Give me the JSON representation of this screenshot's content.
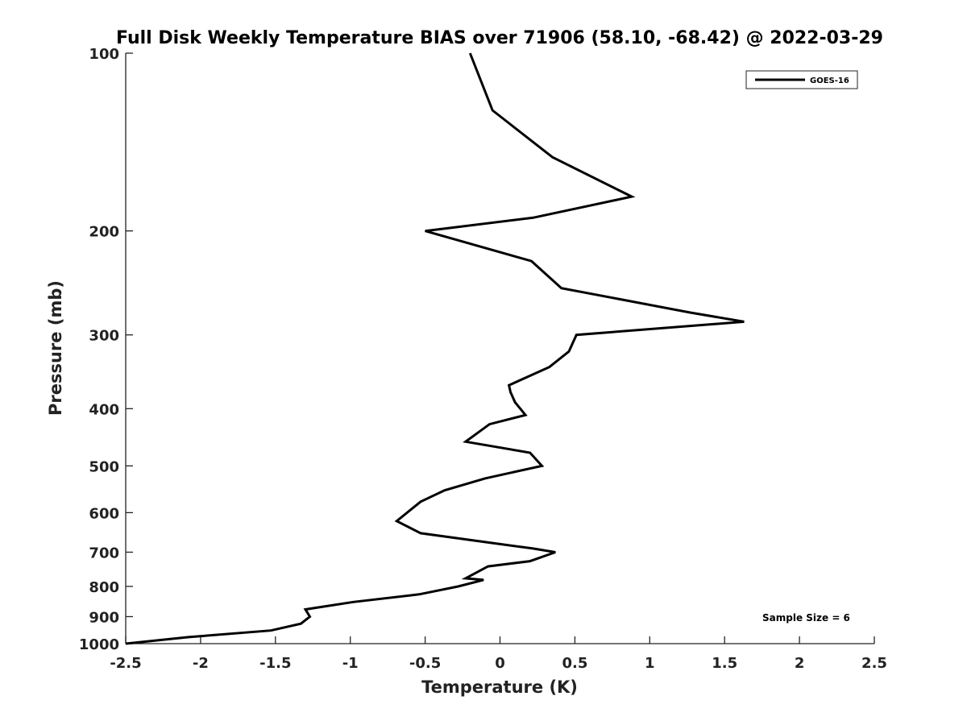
{
  "chart_data": {
    "type": "line",
    "title": "Full Disk Weekly Temperature BIAS over 71906 (58.10, -68.42) @ 2022-03-29",
    "xlabel": "Temperature (K)",
    "ylabel": "Pressure (mb)",
    "xlim": [
      -2.5,
      2.5
    ],
    "ylim": [
      100,
      1000
    ],
    "y_scale": "log",
    "y_reversed": true,
    "grid": false,
    "x_ticks": [
      -2.5,
      -2,
      -1.5,
      -1,
      -0.5,
      0,
      0.5,
      1,
      1.5,
      2,
      2.5
    ],
    "x_tick_labels": [
      "-2.5",
      "-2",
      "-1.5",
      "-1",
      "-0.5",
      "0",
      "0.5",
      "1",
      "1.5",
      "2",
      "2.5"
    ],
    "y_ticks": [
      100,
      200,
      300,
      400,
      500,
      600,
      700,
      800,
      900,
      1000
    ],
    "y_tick_labels": [
      "100",
      "200",
      "300",
      "400",
      "500",
      "600",
      "700",
      "800",
      "900",
      "1000"
    ],
    "legend": {
      "position": "top-right",
      "entries": [
        "GOES-16"
      ]
    },
    "annotations": [
      "Sample Size = 6"
    ],
    "line_color": "#000000",
    "series": [
      {
        "name": "GOES-16",
        "x": [
          -0.2,
          -0.05,
          0.35,
          0.88,
          0.22,
          -0.5,
          0.21,
          0.41,
          1.27,
          1.63,
          0.51,
          0.46,
          0.33,
          0.06,
          0.07,
          0.1,
          0.17,
          -0.07,
          -0.23,
          0.2,
          0.28,
          -0.1,
          -0.37,
          -0.53,
          -0.69,
          -0.53,
          -0.06,
          0.22,
          0.37,
          0.2,
          -0.08,
          -0.23,
          -0.11,
          -0.28,
          -0.54,
          -0.98,
          -1.3,
          -1.27,
          -1.33,
          -1.53,
          -2.08,
          -2.5
        ],
        "y": [
          100,
          125,
          150,
          175,
          190,
          200,
          225,
          250,
          275,
          285,
          300,
          320,
          340,
          365,
          375,
          390,
          410,
          425,
          455,
          475,
          500,
          525,
          550,
          575,
          620,
          650,
          675,
          690,
          700,
          725,
          740,
          775,
          780,
          800,
          825,
          850,
          875,
          900,
          925,
          950,
          975,
          1000
        ]
      }
    ]
  }
}
